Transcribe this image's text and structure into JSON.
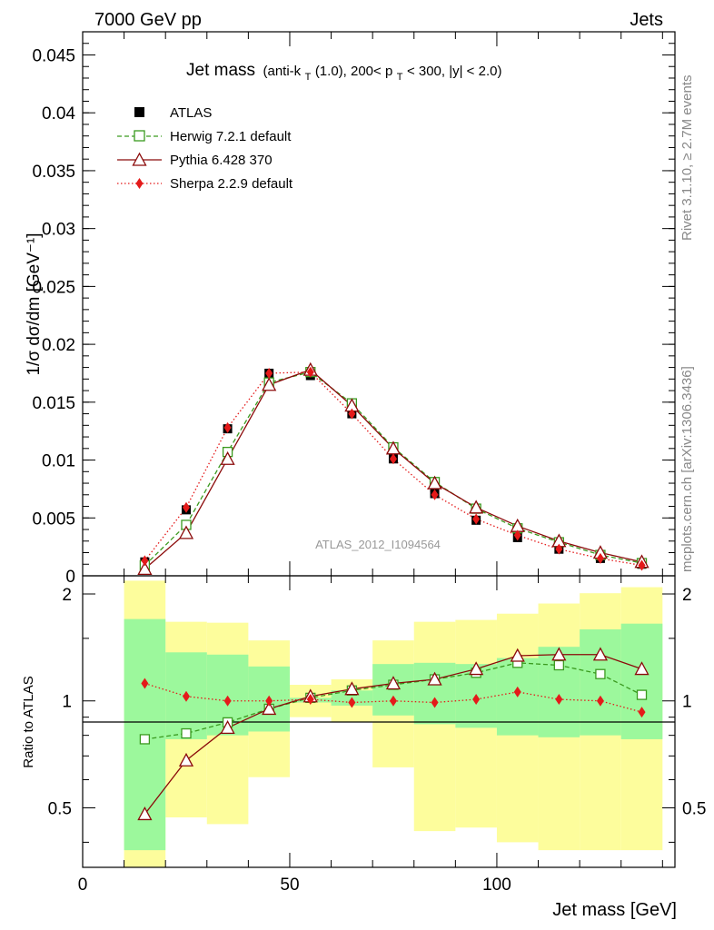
{
  "header": {
    "left": "7000 GeV pp",
    "right": "Jets"
  },
  "side_labels": {
    "rivet": "Rivet 3.1.10, ≥ 2.7M events",
    "mcplots": "mcplots.cern.ch [arXiv:1306.3436]"
  },
  "chart_data": [
    {
      "type": "scatter",
      "panel": "main",
      "title": {
        "main": "Jet mass",
        "pre": "(anti-k",
        "sub1": "T",
        "mid": "(1.0), 200< p",
        "sub2": "T",
        "post": " < 300, |y| < 2.0)"
      },
      "ylabel": "1/σ dσ/dm [GeV⁻¹]",
      "ylim": [
        0,
        0.047
      ],
      "yticks": [
        0,
        0.005,
        0.01,
        0.015,
        0.02,
        0.025,
        0.03,
        0.035,
        0.04,
        0.045
      ],
      "ytick_labels": [
        "0",
        "0.005",
        "0.01",
        "0.015",
        "0.02",
        "0.025",
        "0.03",
        "0.035",
        "0.04",
        "0.045"
      ],
      "x": [
        15,
        25,
        35,
        45,
        55,
        65,
        75,
        85,
        95,
        105,
        115,
        125,
        135
      ],
      "watermark": "ATLAS_2012_I1094564",
      "legend_position": "top-left",
      "series": [
        {
          "name": "ATLAS",
          "color": "#000000",
          "marker": "square-filled",
          "line": "none",
          "values": [
            0.0012,
            0.0057,
            0.0127,
            0.0175,
            0.0173,
            0.014,
            0.0101,
            0.0071,
            0.0048,
            0.0033,
            0.0023,
            0.0015,
            0.001
          ]
        },
        {
          "name": "Herwig 7.2.1 default",
          "color": "#3a9a1f",
          "marker": "square-open",
          "line": "dashed",
          "values": [
            0.0009,
            0.0044,
            0.0107,
            0.0167,
            0.0176,
            0.0149,
            0.0111,
            0.0081,
            0.0058,
            0.0041,
            0.0029,
            0.0018,
            0.0011
          ]
        },
        {
          "name": "Pythia 6.428 370",
          "color": "#8b0a0a",
          "marker": "triangle-open",
          "line": "solid",
          "values": [
            0.0006,
            0.0037,
            0.0101,
            0.0165,
            0.0178,
            0.0147,
            0.011,
            0.008,
            0.0059,
            0.0043,
            0.003,
            0.002,
            0.0012
          ]
        },
        {
          "name": "Sherpa 2.2.9 default",
          "color": "#e41a1a",
          "marker": "diamond-filled",
          "line": "dotted",
          "values": [
            0.0013,
            0.0059,
            0.0128,
            0.0175,
            0.0176,
            0.014,
            0.0101,
            0.007,
            0.0049,
            0.0035,
            0.0023,
            0.0015,
            0.0009
          ]
        }
      ]
    },
    {
      "type": "line",
      "panel": "ratio",
      "ylabel": "Ratio to ATLAS",
      "xlabel": "Jet mass [GeV]",
      "xlim": [
        0,
        143
      ],
      "xticks": [
        0,
        50,
        100
      ],
      "xtick_labels": [
        "0",
        "50",
        "100"
      ],
      "ylim": [
        0.34,
        2.25
      ],
      "yticks": [
        0.5,
        1,
        2
      ],
      "ytick_labels": [
        "0.5",
        "1",
        "2"
      ],
      "bin_edges": [
        10,
        20,
        30,
        40,
        50,
        60,
        70,
        80,
        90,
        100,
        110,
        120,
        130,
        140
      ],
      "band_colors": {
        "inner": "#9cf89c",
        "outer": "#fdfd9c"
      },
      "inner_band": {
        "low": [
          0.38,
          0.78,
          0.8,
          0.82,
          0.99,
          0.97,
          0.91,
          0.86,
          0.84,
          0.8,
          0.79,
          0.8,
          0.78
        ],
        "high": [
          1.7,
          1.37,
          1.35,
          1.25,
          1.02,
          1.07,
          1.27,
          1.28,
          1.27,
          1.32,
          1.42,
          1.59,
          1.65
        ]
      },
      "outer_band": {
        "low": [
          0.3,
          0.47,
          0.45,
          0.61,
          0.9,
          0.87,
          0.65,
          0.43,
          0.44,
          0.4,
          0.38,
          0.38,
          0.38
        ],
        "high": [
          2.18,
          1.67,
          1.66,
          1.48,
          1.11,
          1.15,
          1.48,
          1.67,
          1.69,
          1.76,
          1.88,
          2.01,
          2.09
        ]
      },
      "series": [
        {
          "name": "Herwig 7.2.1 default",
          "color": "#3a9a1f",
          "values": [
            0.78,
            0.81,
            0.87,
            0.95,
            1.02,
            1.07,
            1.11,
            1.15,
            1.2,
            1.28,
            1.26,
            1.19,
            1.04
          ]
        },
        {
          "name": "Pythia 6.428 370",
          "color": "#8b0a0a",
          "values": [
            0.48,
            0.68,
            0.84,
            0.95,
            1.03,
            1.08,
            1.12,
            1.15,
            1.23,
            1.34,
            1.35,
            1.35,
            1.23
          ]
        },
        {
          "name": "Sherpa 2.2.9 default",
          "color": "#e41a1a",
          "values": [
            1.12,
            1.03,
            1.0,
            1.0,
            1.01,
            0.99,
            1.0,
            0.99,
            1.01,
            1.06,
            1.01,
            1.0,
            0.93
          ]
        }
      ]
    }
  ]
}
